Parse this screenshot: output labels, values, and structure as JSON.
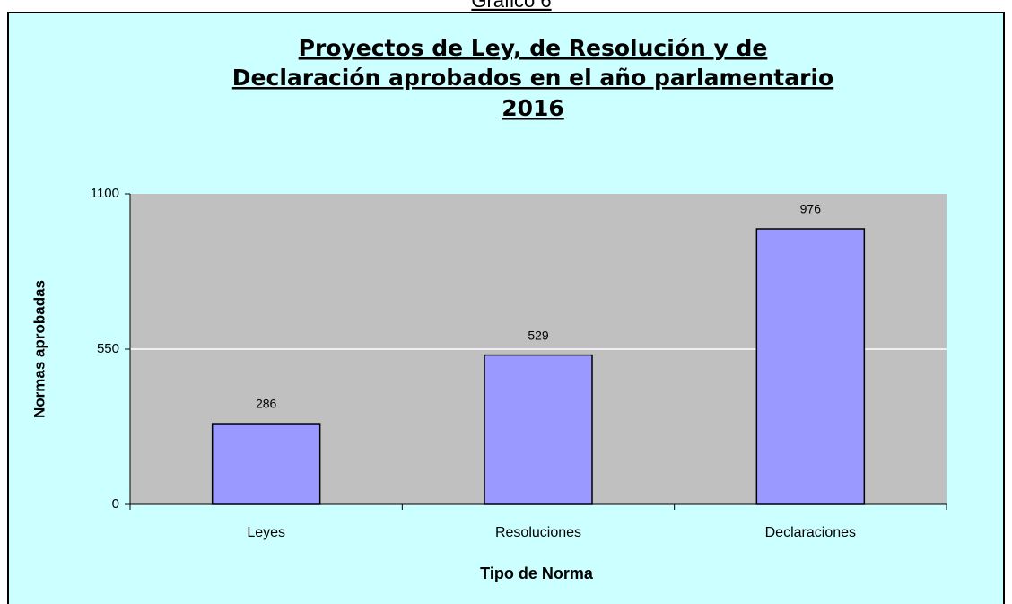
{
  "page_caption": "Gráfico 6",
  "chart_data": {
    "type": "bar",
    "title": [
      "Proyectos de Ley, de Resolución y de",
      "Declaración aprobados en el año parlamentario",
      "2016"
    ],
    "categories": [
      "Leyes",
      "Resoluciones",
      "Declaraciones"
    ],
    "values": [
      286,
      529,
      976
    ],
    "color": "#9999ff",
    "ylim": [
      0,
      1100
    ],
    "yticks": [
      0,
      550,
      1100
    ],
    "grid": true,
    "xlabel": "Tipo de Norma",
    "ylabel": "Normas aprobadas"
  }
}
